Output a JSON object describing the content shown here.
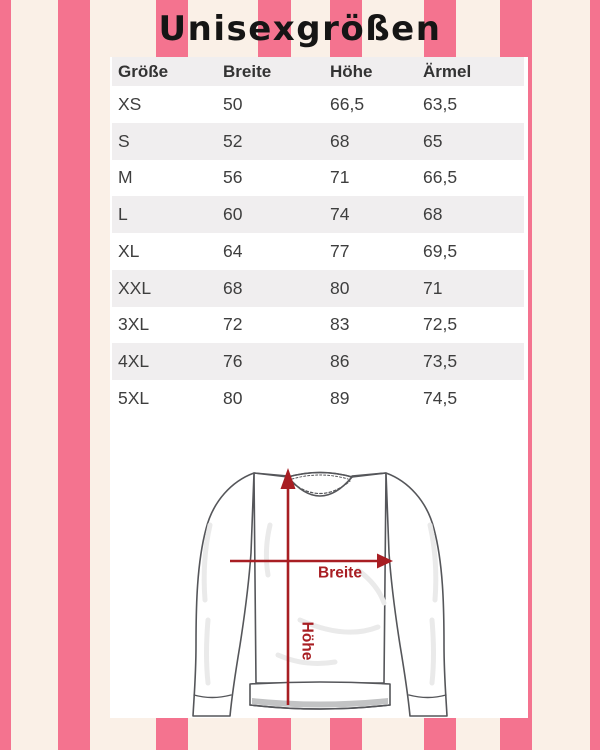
{
  "title": "Unisexgrößen",
  "size_table": {
    "columns": [
      "Größe",
      "Breite",
      "Höhe",
      "Ärmel"
    ],
    "rows": [
      [
        "XS",
        "50",
        "66,5",
        "63,5"
      ],
      [
        "S",
        "52",
        "68",
        "65"
      ],
      [
        "M",
        "56",
        "71",
        "66,5"
      ],
      [
        "L",
        "60",
        "74",
        "68"
      ],
      [
        "XL",
        "64",
        "77",
        "69,5"
      ],
      [
        "XXL",
        "68",
        "80",
        "71"
      ],
      [
        "3XL",
        "72",
        "83",
        "72,5"
      ],
      [
        "4XL",
        "76",
        "86",
        "73,5"
      ],
      [
        "5XL",
        "80",
        "89",
        "74,5"
      ]
    ]
  },
  "diagram": {
    "width_label": "Breite",
    "height_label": "Höhe"
  },
  "chart_data": {
    "type": "table",
    "title": "Unisexgrößen",
    "columns": [
      "Größe",
      "Breite",
      "Höhe",
      "Ärmel"
    ],
    "rows": [
      {
        "groesse": "XS",
        "breite": 50,
        "hoehe": 66.5,
        "aermel": 63.5
      },
      {
        "groesse": "S",
        "breite": 52,
        "hoehe": 68,
        "aermel": 65
      },
      {
        "groesse": "M",
        "breite": 56,
        "hoehe": 71,
        "aermel": 66.5
      },
      {
        "groesse": "L",
        "breite": 60,
        "hoehe": 74,
        "aermel": 68
      },
      {
        "groesse": "XL",
        "breite": 64,
        "hoehe": 77,
        "aermel": 69.5
      },
      {
        "groesse": "XXL",
        "breite": 68,
        "hoehe": 80,
        "aermel": 71
      },
      {
        "groesse": "3XL",
        "breite": 72,
        "hoehe": 83,
        "aermel": 72.5
      },
      {
        "groesse": "4XL",
        "breite": 76,
        "hoehe": 86,
        "aermel": 73.5
      },
      {
        "groesse": "5XL",
        "breite": 80,
        "hoehe": 89,
        "aermel": 74.5
      }
    ]
  },
  "colors": {
    "stripe_pink": "#F4738F",
    "background_cream": "#FAF0E7",
    "panel_white": "#FFFFFF",
    "row_gray": "#F0EEEF",
    "arrow_red": "#A81E23",
    "title_black": "#151515"
  }
}
